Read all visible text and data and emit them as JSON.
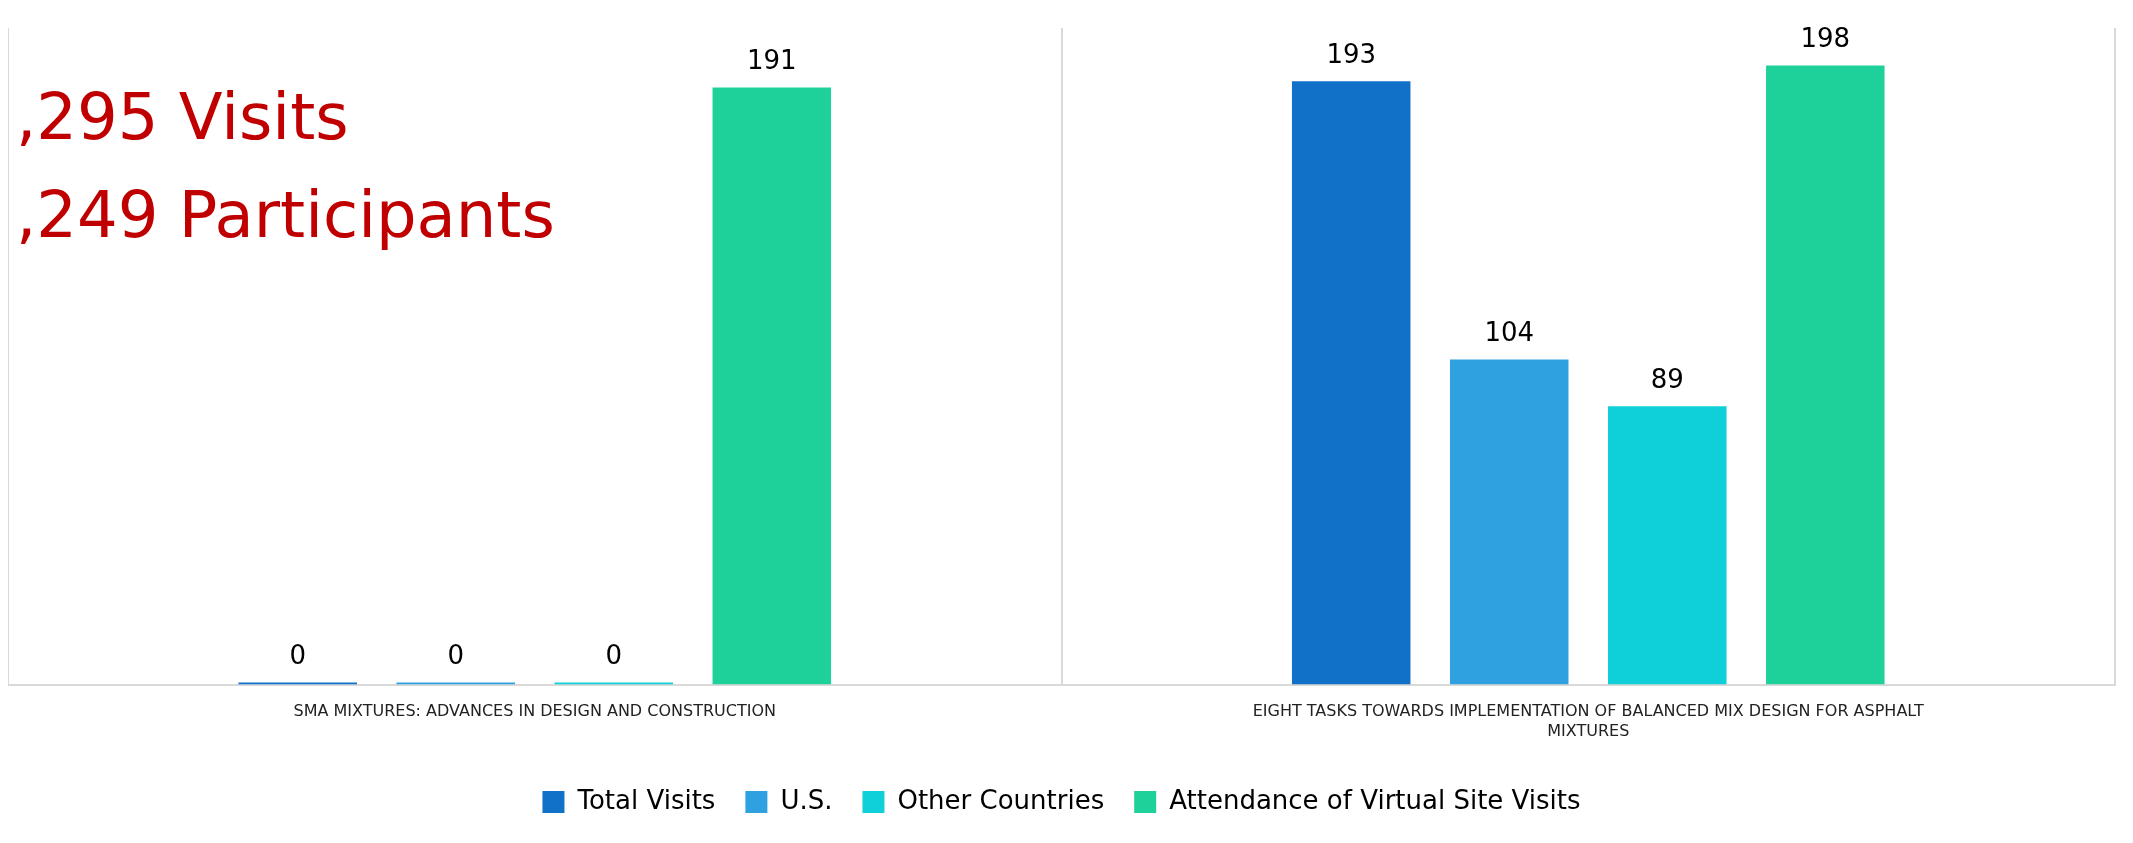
{
  "chart_data": {
    "type": "bar",
    "categories": [
      "SMA MIXTURES: ADVANCES IN DESIGN AND CONSTRUCTION",
      "EIGHT TASKS TOWARDS IMPLEMENTATION OF BALANCED MIX DESIGN FOR ASPHALT MIXTURES"
    ],
    "series": [
      {
        "name": "Total Visits",
        "color": "#1170c8",
        "values": [
          0,
          193
        ]
      },
      {
        "name": "U.S.",
        "color": "#2fa0e0",
        "values": [
          0,
          104
        ]
      },
      {
        "name": "Other Countries",
        "color": "#0fd0d8",
        "values": [
          0,
          89
        ]
      },
      {
        "name": "Attendance of Virtual Site Visits",
        "color": "#1ed19a",
        "values": [
          191,
          198
        ]
      }
    ],
    "ylim": [
      0,
      210
    ],
    "data_labels": true,
    "legend": "bottom",
    "grid": "x",
    "annotations": [
      ",295 Visits",
      ",249 Participants"
    ]
  }
}
